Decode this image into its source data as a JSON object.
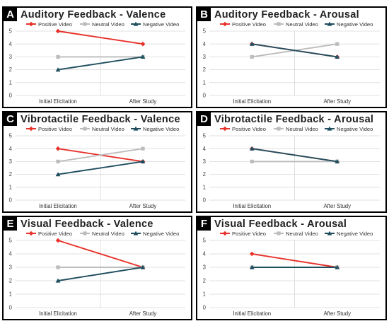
{
  "figure": {
    "colors": {
      "positive": "#e8322a",
      "neutral": "#bcbcbc",
      "negative": "#1f4e5f",
      "grid": "#d9d9d9",
      "border": "#000000"
    }
  },
  "chart_data": [
    {
      "letter": "A",
      "type": "line",
      "title": "Auditory Feedback - Valence",
      "categories": [
        "Initial Elicitation",
        "After Study"
      ],
      "ylim": [
        0,
        5
      ],
      "yticks": [
        0,
        1,
        2,
        3,
        4,
        5
      ],
      "grid": true,
      "legend": "top",
      "series": [
        {
          "name": "Positive Video",
          "values": [
            5,
            4
          ]
        },
        {
          "name": "Neutral Video",
          "values": [
            3,
            3
          ]
        },
        {
          "name": "Negative Video",
          "values": [
            2,
            3
          ]
        }
      ]
    },
    {
      "letter": "B",
      "type": "line",
      "title": "Auditory Feedback - Arousal",
      "categories": [
        "Initial Elicitation",
        "After Study"
      ],
      "ylim": [
        0,
        5
      ],
      "yticks": [
        0,
        1,
        2,
        3,
        4,
        5
      ],
      "grid": true,
      "legend": "top",
      "series": [
        {
          "name": "Positive Video",
          "values": [
            4,
            3
          ]
        },
        {
          "name": "Neutral Video",
          "values": [
            3,
            4
          ]
        },
        {
          "name": "Negative Video",
          "values": [
            4,
            3
          ]
        }
      ]
    },
    {
      "letter": "C",
      "type": "line",
      "title": "Vibrotactile Feedback - Valence",
      "categories": [
        "Initial Elicitation",
        "After Study"
      ],
      "ylim": [
        0,
        5
      ],
      "yticks": [
        0,
        1,
        2,
        3,
        4,
        5
      ],
      "grid": true,
      "legend": "top",
      "series": [
        {
          "name": "Positive Video",
          "values": [
            4,
            3
          ]
        },
        {
          "name": "Neutral Video",
          "values": [
            3,
            4
          ]
        },
        {
          "name": "Negative Video",
          "values": [
            2,
            3
          ]
        }
      ]
    },
    {
      "letter": "D",
      "type": "line",
      "title": "Vibrotactile Feedback - Arousal",
      "categories": [
        "Initial Elicitation",
        "After Study"
      ],
      "ylim": [
        0,
        5
      ],
      "yticks": [
        0,
        1,
        2,
        3,
        4,
        5
      ],
      "grid": true,
      "legend": "top",
      "series": [
        {
          "name": "Positive Video",
          "values": [
            4,
            3
          ]
        },
        {
          "name": "Neutral Video",
          "values": [
            3,
            3
          ]
        },
        {
          "name": "Negative Video",
          "values": [
            4,
            3
          ]
        }
      ]
    },
    {
      "letter": "E",
      "type": "line",
      "title": "Visual Feedback - Valence",
      "categories": [
        "Initial Elicitation",
        "After Study"
      ],
      "ylim": [
        0,
        5
      ],
      "yticks": [
        0,
        1,
        2,
        3,
        4,
        5
      ],
      "grid": true,
      "legend": "top",
      "series": [
        {
          "name": "Positive Video",
          "values": [
            5,
            3
          ]
        },
        {
          "name": "Neutral Video",
          "values": [
            3,
            3
          ]
        },
        {
          "name": "Negative Video",
          "values": [
            2,
            3
          ]
        }
      ]
    },
    {
      "letter": "F",
      "type": "line",
      "title": "Visual Feedback - Arousal",
      "categories": [
        "Initial Elicitation",
        "After Study"
      ],
      "ylim": [
        0,
        5
      ],
      "yticks": [
        0,
        1,
        2,
        3,
        4,
        5
      ],
      "grid": true,
      "legend": "top",
      "series": [
        {
          "name": "Positive Video",
          "values": [
            4,
            3
          ]
        },
        {
          "name": "Neutral Video",
          "values": [
            3,
            3
          ]
        },
        {
          "name": "Negative Video",
          "values": [
            3,
            3
          ]
        }
      ]
    }
  ]
}
